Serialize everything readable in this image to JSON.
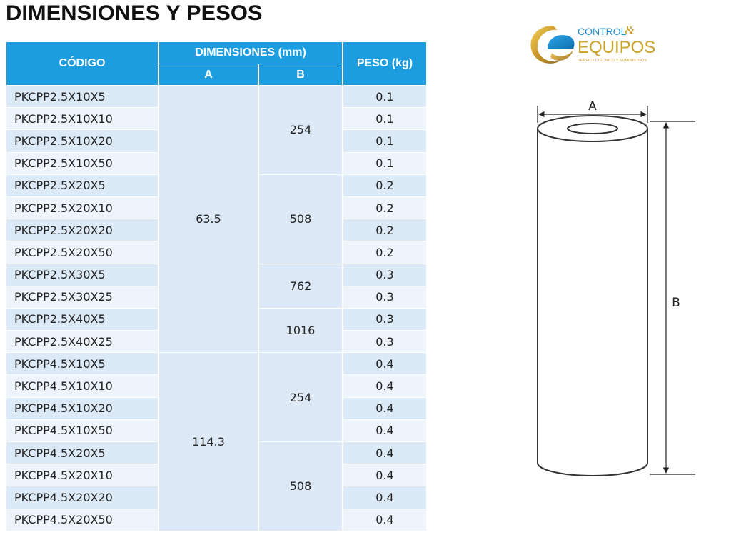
{
  "title": "DIMENSIONES Y PESOS",
  "table": {
    "head": {
      "codigo": "CÓDIGO",
      "dimensiones": "DIMENSIONES (mm)",
      "a": "A",
      "b": "B",
      "peso": "PESO (kg)"
    },
    "codes": [
      "PKCPP2.5X10X5",
      "PKCPP2.5X10X10",
      "PKCPP2.5X10X20",
      "PKCPP2.5X10X50",
      "PKCPP2.5X20X5",
      "PKCPP2.5X20X10",
      "PKCPP2.5X20X20",
      "PKCPP2.5X20X50",
      "PKCPP2.5X30X5",
      "PKCPP2.5X30X25",
      "PKCPP2.5X40X5",
      "PKCPP2.5X40X25",
      "PKCPP4.5X10X5",
      "PKCPP4.5X10X10",
      "PKCPP4.5X10X20",
      "PKCPP4.5X10X50",
      "PKCPP4.5X20X5",
      "PKCPP4.5X20X10",
      "PKCPP4.5X20X20",
      "PKCPP4.5X20X50"
    ],
    "pesos": [
      "0.1",
      "0.1",
      "0.1",
      "0.1",
      "0.2",
      "0.2",
      "0.2",
      "0.2",
      "0.3",
      "0.3",
      "0.3",
      "0.3",
      "0.4",
      "0.4",
      "0.4",
      "0.4",
      "0.4",
      "0.4",
      "0.4",
      "0.4"
    ],
    "a_groups": [
      {
        "value": "63.5",
        "rows": 12
      },
      {
        "value": "114.3",
        "rows": 8
      }
    ],
    "b_groups": [
      {
        "value": "254",
        "rows": 4
      },
      {
        "value": "508",
        "rows": 4
      },
      {
        "value": "762",
        "rows": 2
      },
      {
        "value": "1016",
        "rows": 2
      },
      {
        "value": "254",
        "rows": 4
      },
      {
        "value": "508",
        "rows": 4
      }
    ]
  },
  "logo": {
    "line1": "CONTROL",
    "amp": "&",
    "line2": "EQUIPOS",
    "tagline": "SERVICIO TÉCNICO Y SUMINISTROS",
    "colors": {
      "blue": "#1f8fd6",
      "gold": "#c9a227"
    }
  },
  "drawing": {
    "label_a": "A",
    "label_b": "B"
  }
}
